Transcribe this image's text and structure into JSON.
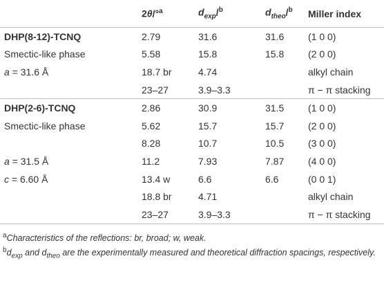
{
  "table": {
    "header": [
      [
        "2",
        "θ",
        "/°",
        "a"
      ],
      [
        "d",
        "exp",
        "/",
        "b"
      ],
      [
        "d",
        "theo",
        "/",
        "b"
      ],
      [
        "Miller index"
      ]
    ],
    "groups": [
      {
        "rows": [
          [
            "DHP(8-12)-TCNQ",
            "2.79",
            "31.6",
            "31.6",
            "(1 0 0)"
          ],
          [
            "Smectic-like phase",
            "5.58",
            "15.8",
            "15.8",
            "(2 0 0)"
          ],
          [
            [
              "a",
              " = 31.6 Å"
            ],
            "18.7 br",
            "4.74",
            null,
            "alkyl chain"
          ],
          [
            null,
            "23–27",
            "3.9–3.3",
            null,
            "π − π stacking"
          ]
        ]
      },
      {
        "rows": [
          [
            "DHP(2-6)-TCNQ",
            "2.86",
            "30.9",
            "31.5",
            "(1 0 0)"
          ],
          [
            "Smectic-like phase",
            "5.62",
            "15.7",
            "15.7",
            "(2 0 0)"
          ],
          [
            null,
            "8.28",
            "10.7",
            "10.5",
            "(3 0 0)"
          ],
          [
            [
              "a",
              " = 31.5 Å"
            ],
            "11.2",
            "7.93",
            "7.87",
            "(4 0 0)"
          ],
          [
            [
              "c",
              " = 6.60 Å"
            ],
            "13.4 w",
            "6.6",
            "6.6",
            "(0 0 1)"
          ],
          [
            null,
            "18.8 br",
            "4.71",
            null,
            "alkyl chain"
          ],
          [
            null,
            "23–27",
            "3.9–3.3",
            null,
            "π − π stacking"
          ]
        ]
      }
    ],
    "footnotes": [
      [
        "a",
        "Characteristics of the reflections: br, broad; w, weak."
      ],
      [
        "b",
        "d",
        "exp",
        " and ",
        "d",
        "theo",
        " are the experimentally measured and theoretical diffraction spacings, respectively."
      ]
    ]
  }
}
